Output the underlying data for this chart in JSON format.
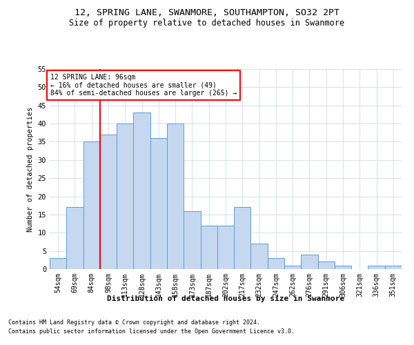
{
  "title1": "12, SPRING LANE, SWANMORE, SOUTHAMPTON, SO32 2PT",
  "title2": "Size of property relative to detached houses in Swanmore",
  "xlabel": "Distribution of detached houses by size in Swanmore",
  "ylabel": "Number of detached properties",
  "categories": [
    "54sqm",
    "69sqm",
    "84sqm",
    "98sqm",
    "113sqm",
    "128sqm",
    "143sqm",
    "158sqm",
    "173sqm",
    "187sqm",
    "202sqm",
    "217sqm",
    "232sqm",
    "247sqm",
    "262sqm",
    "276sqm",
    "291sqm",
    "306sqm",
    "321sqm",
    "336sqm",
    "351sqm"
  ],
  "values": [
    3,
    17,
    35,
    37,
    40,
    43,
    36,
    40,
    16,
    12,
    12,
    17,
    7,
    3,
    1,
    4,
    2,
    1,
    0,
    1,
    1
  ],
  "bar_color": "#c5d8f0",
  "bar_edge_color": "#5b9bd5",
  "red_line_index": 3,
  "ylim": [
    0,
    55
  ],
  "yticks": [
    0,
    5,
    10,
    15,
    20,
    25,
    30,
    35,
    40,
    45,
    50,
    55
  ],
  "annotation_title": "12 SPRING LANE: 96sqm",
  "annotation_line1": "← 16% of detached houses are smaller (49)",
  "annotation_line2": "84% of semi-detached houses are larger (265) →",
  "footnote1": "Contains HM Land Registry data © Crown copyright and database right 2024.",
  "footnote2": "Contains public sector information licensed under the Open Government Licence v3.0.",
  "bg_color": "#ffffff",
  "grid_color": "#d0dce8"
}
